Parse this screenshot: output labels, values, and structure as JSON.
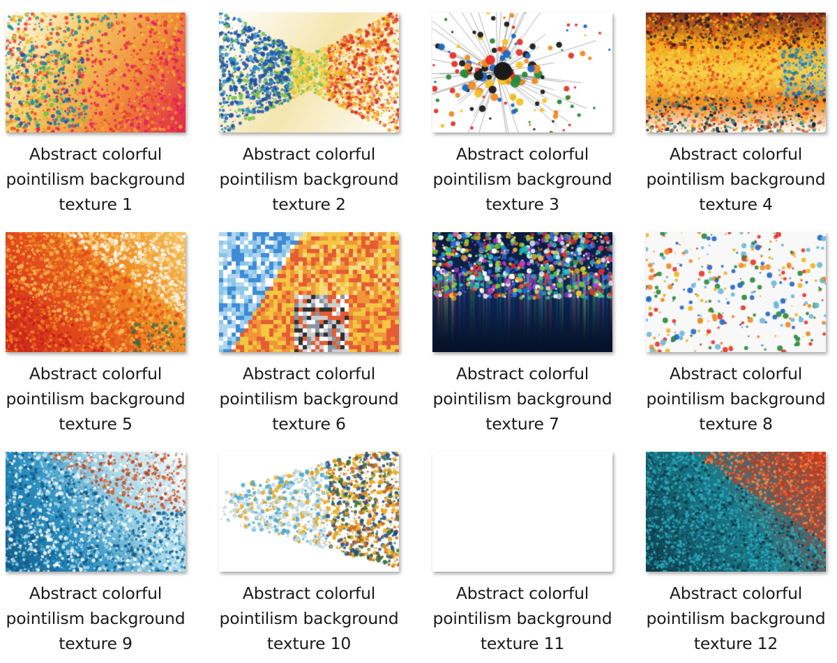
{
  "items": [
    {
      "lines": [
        "Abstract colorful",
        "pointilism background",
        "texture 1"
      ],
      "image": "pointillism-thumbnail",
      "palette": [
        "#1a8fa0",
        "#e8c23a",
        "#e8442c",
        "#e31c63",
        "#f4a23c",
        "#2e4ea8",
        "#ffffff"
      ],
      "style": "diag"
    },
    {
      "lines": [
        "Abstract colorful",
        "pointilism background",
        "texture 2"
      ],
      "image": "pointillism-thumbnail",
      "palette": [
        "#1c4fa3",
        "#2b8fd0",
        "#f2c72c",
        "#e8502a",
        "#d32a1e",
        "#7cc24a",
        "#ffffff"
      ],
      "style": "burst"
    },
    {
      "lines": [
        "Abstract colorful",
        "pointilism background",
        "texture 3"
      ],
      "image": "splatter-thumbnail",
      "palette": [
        "#1a1a1a",
        "#e8322a",
        "#2a8a3a",
        "#1f66c8",
        "#f5c22a",
        "#f08a24"
      ],
      "style": "splash"
    },
    {
      "lines": [
        "Abstract colorful",
        "pointilism background",
        "texture 4"
      ],
      "image": "pointillism-thumbnail",
      "palette": [
        "#f2a81c",
        "#e44a1e",
        "#2a60b0",
        "#6bb8d8",
        "#2e8a8a",
        "#f7d24a",
        "#1b1b2a"
      ],
      "style": "band"
    },
    {
      "lines": [
        "Abstract colorful",
        "pointilism background",
        "texture 5"
      ],
      "image": "pointillism-thumbnail",
      "palette": [
        "#f08a22",
        "#e24a1c",
        "#f5c25a",
        "#c8221c",
        "#f7e0b0",
        "#ffffff",
        "#2e6a3a"
      ],
      "style": "warm"
    },
    {
      "lines": [
        "Abstract colorful",
        "pointilism background",
        "texture 6"
      ],
      "image": "mosaic-thumbnail",
      "palette": [
        "#2a7fd0",
        "#7cc0e8",
        "#f2c12e",
        "#ef8a24",
        "#e24a1e",
        "#c8c8c8",
        "#ffffff"
      ],
      "style": "mosaic"
    },
    {
      "lines": [
        "Abstract colorful",
        "pointilism background",
        "texture 7"
      ],
      "image": "bokeh-thumbnail",
      "palette": [
        "#1fc0c0",
        "#2a6ad8",
        "#f5c22a",
        "#e8322a",
        "#7ad83a",
        "#ffffff",
        "#c03ad0"
      ],
      "style": "dark"
    },
    {
      "lines": [
        "Abstract colorful",
        "pointilism background",
        "texture 8"
      ],
      "image": "scattered-dots-thumbnail",
      "palette": [
        "#e8b81c",
        "#1f66c8",
        "#e8322a",
        "#2a8a3a",
        "#f08a24",
        "#6ab8d8"
      ],
      "style": "sparse"
    },
    {
      "lines": [
        "Abstract colorful",
        "pointilism background",
        "texture 9"
      ],
      "image": "pointillism-thumbnail",
      "palette": [
        "#0f5a86",
        "#2a8fc0",
        "#a8d8ea",
        "#ffffff",
        "#d8622a",
        "#b8421c"
      ],
      "style": "blue"
    },
    {
      "lines": [
        "Abstract colorful",
        "pointilism background",
        "texture 10"
      ],
      "image": "pointillism-thumbnail",
      "palette": [
        "#e8a81c",
        "#c8621c",
        "#1c4a8a",
        "#4aa8d0",
        "#2a6a3a",
        "#c0d8e0"
      ],
      "style": "light"
    },
    {
      "lines": [
        "Abstract colorful",
        "pointilism background",
        "texture 11"
      ],
      "image": "mosaic-thumbnail",
      "palette": [
        "#f5c22a",
        "#1f66c8",
        "#d8621c",
        "#2a2a2a",
        "#6ab8e8",
        "#e8a83a",
        "#ffffff"
      ],
      "style": "blobs"
    },
    {
      "lines": [
        "Abstract colorful",
        "pointilism background",
        "texture 12"
      ],
      "image": "pointillism-thumbnail",
      "palette": [
        "#1a7a8a",
        "#2aa8b8",
        "#e8522a",
        "#c83a1c",
        "#0f3a4a",
        "#f0884a"
      ],
      "style": "teal"
    }
  ]
}
